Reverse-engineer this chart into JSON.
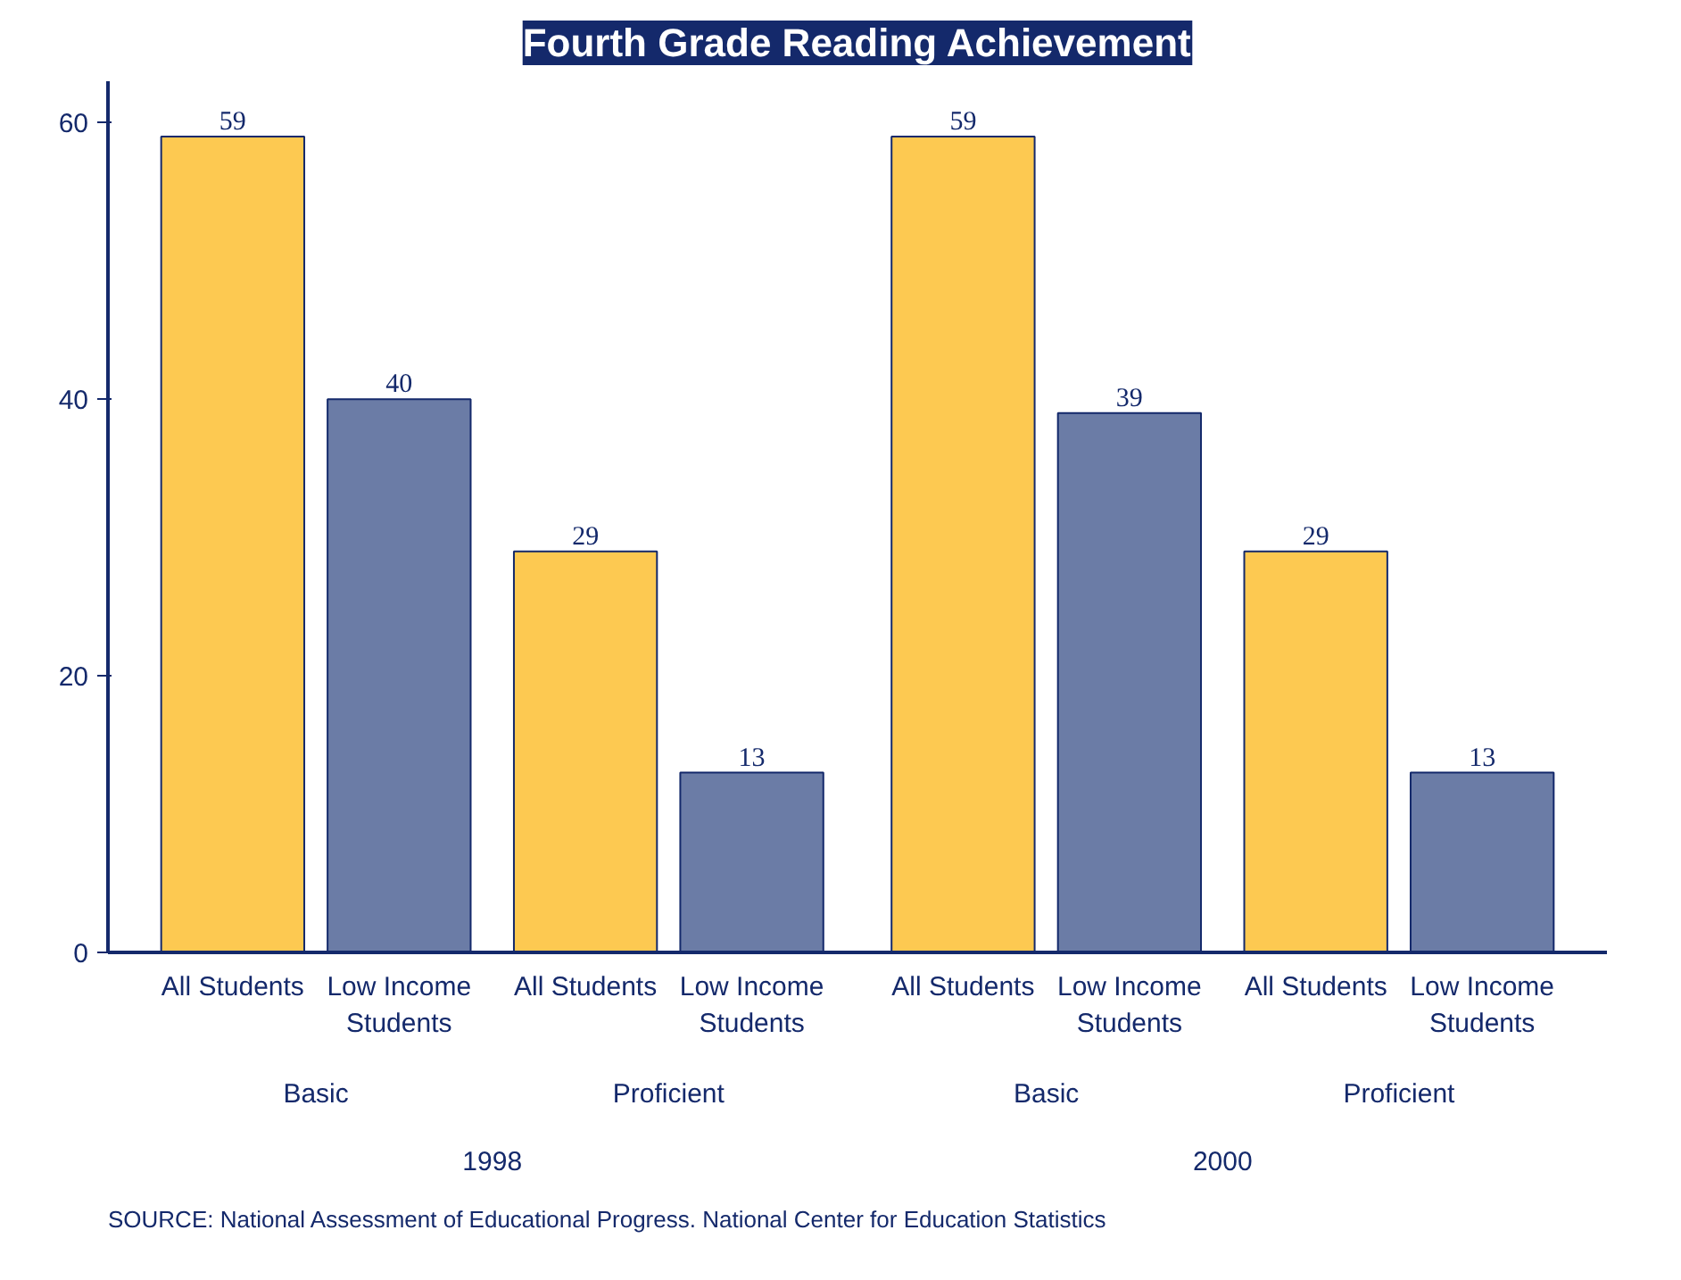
{
  "chart_data": {
    "type": "bar",
    "title": "Fourth Grade Reading Achievement",
    "categories": [
      "All Students",
      "Low Income Students",
      "All Students",
      "Low Income Students",
      "All Students",
      "Low Income Students",
      "All Students",
      "Low Income Students"
    ],
    "values": [
      59,
      40,
      29,
      13,
      59,
      39,
      29,
      13
    ],
    "colors": [
      "#fdc951",
      "#6b7ca6",
      "#fdc951",
      "#6b7ca6",
      "#fdc951",
      "#6b7ca6",
      "#fdc951",
      "#6b7ca6"
    ],
    "ylim": [
      0,
      63
    ],
    "yticks": [
      0,
      20,
      40,
      60
    ],
    "grid": false,
    "data_labels": true,
    "annotations": [
      "Basic",
      "Proficient",
      "Basic",
      "Proficient",
      "1998",
      "2000",
      "SOURCE: National Assessment of Educational Progress. National Center for Education Statistics"
    ]
  }
}
